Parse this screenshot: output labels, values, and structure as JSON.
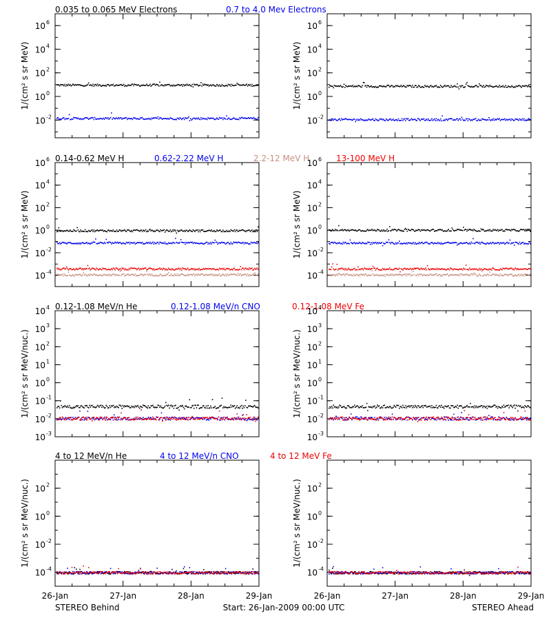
{
  "colors": {
    "black": "#000000",
    "blue": "#0000ee",
    "salmon": "#c78f80",
    "red": "#ee0000"
  },
  "chart_data": [
    {
      "id": "electrons-behind",
      "type": "scatter",
      "yscale": "log",
      "ylabel": "1/(cm² s sr MeV)",
      "ylim_exp": [
        -3.5,
        7
      ],
      "yticks": [
        {
          "label": "10",
          "exp": "6"
        },
        {
          "label": "10",
          "exp": "4"
        },
        {
          "label": "10",
          "exp": "2"
        },
        {
          "label": "10",
          "exp": "0"
        },
        {
          "label": "10",
          "exp": "-2"
        }
      ],
      "series": [
        {
          "name": "0.035 to 0.065 MeV Electrons",
          "color": "#000000",
          "level": 10
        },
        {
          "name": "0.7 to 4.0 Mev Electrons",
          "color": "#0000ee",
          "level": 0.015
        }
      ]
    },
    {
      "id": "electrons-ahead",
      "type": "scatter",
      "yscale": "log",
      "ylabel": "1/(cm² s sr MeV)",
      "ylim_exp": [
        -3.5,
        7
      ],
      "yticks": [
        {
          "label": "10",
          "exp": "6"
        },
        {
          "label": "10",
          "exp": "4"
        },
        {
          "label": "10",
          "exp": "2"
        },
        {
          "label": "10",
          "exp": "0"
        },
        {
          "label": "10",
          "exp": "-2"
        }
      ],
      "series": [
        {
          "color": "#000000",
          "level": 8
        },
        {
          "color": "#0000ee",
          "level": 0.012
        }
      ]
    },
    {
      "id": "protons-behind",
      "type": "scatter",
      "yscale": "log",
      "ylabel": "1/(cm² s sr MeV)",
      "ylim_exp": [
        -5,
        6
      ],
      "yticks": [
        {
          "label": "10",
          "exp": "6"
        },
        {
          "label": "10",
          "exp": "4"
        },
        {
          "label": "10",
          "exp": "2"
        },
        {
          "label": "10",
          "exp": "0"
        },
        {
          "label": "10",
          "exp": "-2"
        },
        {
          "label": "10",
          "exp": "-4"
        }
      ],
      "series": [
        {
          "name": "0.14-0.62 MeV H",
          "color": "#000000",
          "level": 1
        },
        {
          "name": "0.62-2.22 MeV H",
          "color": "#0000ee",
          "level": 0.08
        },
        {
          "name": "2.2-12 MeV H",
          "color": "#c78f80",
          "level": 0.00012
        },
        {
          "name": "13-100 MeV H",
          "color": "#ee0000",
          "level": 0.0004
        }
      ]
    },
    {
      "id": "protons-ahead",
      "type": "scatter",
      "yscale": "log",
      "ylabel": "1/(cm² s sr MeV)",
      "ylim_exp": [
        -5,
        6
      ],
      "yticks": [
        {
          "label": "10",
          "exp": "6"
        },
        {
          "label": "10",
          "exp": "4"
        },
        {
          "label": "10",
          "exp": "2"
        },
        {
          "label": "10",
          "exp": "0"
        },
        {
          "label": "10",
          "exp": "-2"
        },
        {
          "label": "10",
          "exp": "-4"
        }
      ],
      "series": [
        {
          "color": "#000000",
          "level": 1.1
        },
        {
          "color": "#0000ee",
          "level": 0.08
        },
        {
          "color": "#c78f80",
          "level": 0.00012
        },
        {
          "color": "#ee0000",
          "level": 0.0004
        }
      ]
    },
    {
      "id": "heavy-low-behind",
      "type": "scatter",
      "yscale": "log",
      "ylabel": "1/(cm² s sr MeV/nuc.)",
      "ylim_exp": [
        -3,
        4
      ],
      "yticks": [
        {
          "label": "10",
          "exp": "4"
        },
        {
          "label": "10",
          "exp": "3"
        },
        {
          "label": "10",
          "exp": "2"
        },
        {
          "label": "10",
          "exp": "1"
        },
        {
          "label": "10",
          "exp": "0"
        },
        {
          "label": "10",
          "exp": "-1"
        },
        {
          "label": "10",
          "exp": "-2"
        },
        {
          "label": "10",
          "exp": "-3"
        }
      ],
      "series": [
        {
          "name": "0.12-1.08 MeV/n He",
          "color": "#000000",
          "level": 0.05
        },
        {
          "name": "0.12-1.08 MeV/n CNO",
          "color": "#0000ee",
          "level": 0.011
        },
        {
          "name": "0.12-1.08 MeV Fe",
          "color": "#ee0000",
          "level": 0.011
        }
      ]
    },
    {
      "id": "heavy-low-ahead",
      "type": "scatter",
      "yscale": "log",
      "ylabel": "1/(cm² s sr MeV/nuc.)",
      "ylim_exp": [
        -3,
        4
      ],
      "yticks": [
        {
          "label": "10",
          "exp": "4"
        },
        {
          "label": "10",
          "exp": "3"
        },
        {
          "label": "10",
          "exp": "2"
        },
        {
          "label": "10",
          "exp": "1"
        },
        {
          "label": "10",
          "exp": "0"
        },
        {
          "label": "10",
          "exp": "-1"
        },
        {
          "label": "10",
          "exp": "-2"
        },
        {
          "label": "10",
          "exp": "-3"
        }
      ],
      "series": [
        {
          "color": "#000000",
          "level": 0.05
        },
        {
          "color": "#0000ee",
          "level": 0.011
        },
        {
          "color": "#ee0000",
          "level": 0.011
        }
      ]
    },
    {
      "id": "heavy-high-behind",
      "type": "scatter",
      "yscale": "log",
      "ylabel": "1/(cm² s sr MeV/nuc.)",
      "ylim_exp": [
        -5,
        4
      ],
      "yticks": [
        {
          "label": "10",
          "exp": "2"
        },
        {
          "label": "10",
          "exp": "0"
        },
        {
          "label": "10",
          "exp": "-2"
        },
        {
          "label": "10",
          "exp": "-4"
        }
      ],
      "series": [
        {
          "name": "4 to 12 MeV/n He",
          "color": "#000000",
          "level": 0.0001
        },
        {
          "name": "4 to 12 MeV/n CNO",
          "color": "#0000ee",
          "level": 0.0001
        },
        {
          "name": "4 to 12 MeV Fe",
          "color": "#ee0000",
          "level": 0.0001
        }
      ]
    },
    {
      "id": "heavy-high-ahead",
      "type": "scatter",
      "yscale": "log",
      "ylabel": "1/(cm² s sr MeV/nuc.)",
      "ylim_exp": [
        -5,
        4
      ],
      "yticks": [
        {
          "label": "10",
          "exp": "2"
        },
        {
          "label": "10",
          "exp": "0"
        },
        {
          "label": "10",
          "exp": "-2"
        },
        {
          "label": "10",
          "exp": "-4"
        }
      ],
      "series": [
        {
          "color": "#000000",
          "level": 0.0001
        },
        {
          "color": "#0000ee",
          "level": 0.0001
        },
        {
          "color": "#ee0000",
          "level": 0.0001
        }
      ]
    }
  ],
  "xaxis": {
    "ticks": [
      "26-Jan",
      "27-Jan",
      "28-Jan",
      "29-Jan"
    ]
  },
  "footer": {
    "left": "STEREO Behind",
    "center": "Start: 26-Jan-2009 00:00 UTC",
    "right": "STEREO Ahead"
  }
}
